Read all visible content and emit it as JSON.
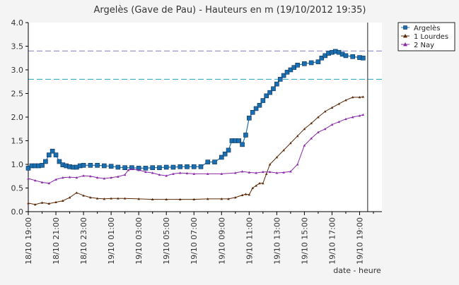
{
  "chart_data": {
    "type": "line",
    "title": "Argelès (Gave de Pau) - Hauteurs en m (19/10/2012 19:35)",
    "xlabel": "date - heure",
    "ylabel": "",
    "ylim": [
      0,
      4
    ],
    "y_ticks": [
      "0.0",
      "0.5",
      "1.0",
      "1.5",
      "2.0",
      "2.5",
      "3.0",
      "3.5",
      "4.0"
    ],
    "x_range": [
      "18/10 19:00",
      "19/10 20:00"
    ],
    "x_ticks": [
      "18/10 19:00",
      "18/10 21:00",
      "18/10 23:00",
      "19/10 01:00",
      "19/10 03:00",
      "19/10 05:00",
      "19/10 07:00",
      "19/10 09:00",
      "19/10 11:00",
      "19/10 13:00",
      "19/10 15:00",
      "19/10 17:00",
      "19/10 19:00"
    ],
    "current_time": "19/10 19:35",
    "grid": false,
    "legend_position": "top-right (outside plot)",
    "reference_lines": [
      {
        "y": 3.4,
        "color": "#8080c0"
      },
      {
        "y": 2.8,
        "color": "#20a0c0"
      }
    ],
    "series": [
      {
        "name": "Argelès",
        "color": "#1a6fb0",
        "marker": "square",
        "points": [
          [
            "18/10 19:00",
            0.92
          ],
          [
            "18/10 19:15",
            0.97
          ],
          [
            "18/10 19:30",
            0.97
          ],
          [
            "18/10 19:45",
            0.97
          ],
          [
            "18/10 20:00",
            0.98
          ],
          [
            "18/10 20:15",
            1.06
          ],
          [
            "18/10 20:30",
            1.2
          ],
          [
            "18/10 20:45",
            1.28
          ],
          [
            "18/10 21:00",
            1.2
          ],
          [
            "18/10 21:15",
            1.06
          ],
          [
            "18/10 21:30",
            0.99
          ],
          [
            "18/10 21:45",
            0.97
          ],
          [
            "18/10 22:00",
            0.95
          ],
          [
            "18/10 22:15",
            0.94
          ],
          [
            "18/10 22:30",
            0.94
          ],
          [
            "18/10 22:45",
            0.97
          ],
          [
            "18/10 23:00",
            0.98
          ],
          [
            "18/10 23:30",
            0.98
          ],
          [
            "19/10 00:00",
            0.98
          ],
          [
            "19/10 00:30",
            0.97
          ],
          [
            "19/10 01:00",
            0.96
          ],
          [
            "19/10 01:30",
            0.94
          ],
          [
            "19/10 02:00",
            0.93
          ],
          [
            "19/10 02:30",
            0.93
          ],
          [
            "19/10 03:00",
            0.92
          ],
          [
            "19/10 03:30",
            0.92
          ],
          [
            "19/10 04:00",
            0.93
          ],
          [
            "19/10 04:30",
            0.93
          ],
          [
            "19/10 05:00",
            0.94
          ],
          [
            "19/10 05:30",
            0.94
          ],
          [
            "19/10 06:00",
            0.95
          ],
          [
            "19/10 06:30",
            0.95
          ],
          [
            "19/10 07:00",
            0.95
          ],
          [
            "19/10 07:30",
            0.95
          ],
          [
            "19/10 08:00",
            1.05
          ],
          [
            "19/10 08:30",
            1.05
          ],
          [
            "19/10 09:00",
            1.15
          ],
          [
            "19/10 09:15",
            1.22
          ],
          [
            "19/10 09:30",
            1.3
          ],
          [
            "19/10 09:45",
            1.5
          ],
          [
            "19/10 10:00",
            1.5
          ],
          [
            "19/10 10:15",
            1.5
          ],
          [
            "19/10 10:30",
            1.42
          ],
          [
            "19/10 10:45",
            1.62
          ],
          [
            "19/10 11:00",
            1.98
          ],
          [
            "19/10 11:15",
            2.1
          ],
          [
            "19/10 11:30",
            2.18
          ],
          [
            "19/10 11:45",
            2.25
          ],
          [
            "19/10 12:00",
            2.35
          ],
          [
            "19/10 12:15",
            2.45
          ],
          [
            "19/10 12:30",
            2.52
          ],
          [
            "19/10 12:45",
            2.6
          ],
          [
            "19/10 13:00",
            2.7
          ],
          [
            "19/10 13:15",
            2.8
          ],
          [
            "19/10 13:30",
            2.88
          ],
          [
            "19/10 13:45",
            2.95
          ],
          [
            "19/10 14:00",
            3.0
          ],
          [
            "19/10 14:15",
            3.05
          ],
          [
            "19/10 14:30",
            3.1
          ],
          [
            "19/10 15:00",
            3.13
          ],
          [
            "19/10 15:30",
            3.15
          ],
          [
            "19/10 16:00",
            3.17
          ],
          [
            "19/10 16:15",
            3.25
          ],
          [
            "19/10 16:30",
            3.3
          ],
          [
            "19/10 16:45",
            3.35
          ],
          [
            "19/10 17:00",
            3.37
          ],
          [
            "19/10 17:15",
            3.39
          ],
          [
            "19/10 17:30",
            3.37
          ],
          [
            "19/10 17:45",
            3.33
          ],
          [
            "19/10 18:00",
            3.3
          ],
          [
            "19/10 18:30",
            3.28
          ],
          [
            "19/10 19:00",
            3.26
          ],
          [
            "19/10 19:15",
            3.25
          ]
        ]
      },
      {
        "name": "1 Lourdes",
        "color": "#5a2a08",
        "marker": "triangle",
        "points": [
          [
            "18/10 19:00",
            0.18
          ],
          [
            "18/10 19:30",
            0.15
          ],
          [
            "18/10 20:00",
            0.19
          ],
          [
            "18/10 20:30",
            0.17
          ],
          [
            "18/10 21:00",
            0.2
          ],
          [
            "18/10 21:30",
            0.23
          ],
          [
            "18/10 22:00",
            0.3
          ],
          [
            "18/10 22:30",
            0.4
          ],
          [
            "18/10 23:00",
            0.34
          ],
          [
            "18/10 23:30",
            0.3
          ],
          [
            "19/10 00:00",
            0.28
          ],
          [
            "19/10 00:30",
            0.27
          ],
          [
            "19/10 01:00",
            0.28
          ],
          [
            "19/10 01:30",
            0.28
          ],
          [
            "19/10 02:00",
            0.28
          ],
          [
            "19/10 03:00",
            0.27
          ],
          [
            "19/10 04:00",
            0.26
          ],
          [
            "19/10 05:00",
            0.26
          ],
          [
            "19/10 06:00",
            0.26
          ],
          [
            "19/10 07:00",
            0.26
          ],
          [
            "19/10 08:00",
            0.27
          ],
          [
            "19/10 09:00",
            0.27
          ],
          [
            "19/10 09:30",
            0.27
          ],
          [
            "19/10 10:00",
            0.3
          ],
          [
            "19/10 10:30",
            0.35
          ],
          [
            "19/10 10:45",
            0.37
          ],
          [
            "19/10 11:00",
            0.36
          ],
          [
            "19/10 11:15",
            0.5
          ],
          [
            "19/10 11:30",
            0.55
          ],
          [
            "19/10 11:45",
            0.6
          ],
          [
            "19/10 12:00",
            0.6
          ],
          [
            "19/10 12:15",
            0.8
          ],
          [
            "19/10 12:30",
            1.0
          ],
          [
            "19/10 13:00",
            1.15
          ],
          [
            "19/10 13:30",
            1.3
          ],
          [
            "19/10 14:00",
            1.45
          ],
          [
            "19/10 14:30",
            1.6
          ],
          [
            "19/10 15:00",
            1.75
          ],
          [
            "19/10 15:30",
            1.87
          ],
          [
            "19/10 16:00",
            2.0
          ],
          [
            "19/10 16:30",
            2.12
          ],
          [
            "19/10 17:00",
            2.2
          ],
          [
            "19/10 17:30",
            2.28
          ],
          [
            "19/10 18:00",
            2.36
          ],
          [
            "19/10 18:30",
            2.42
          ],
          [
            "19/10 19:00",
            2.42
          ],
          [
            "19/10 19:15",
            2.43
          ]
        ]
      },
      {
        "name": "2 Nay",
        "color": "#8a2aa8",
        "marker": "triangle",
        "points": [
          [
            "18/10 19:00",
            0.7
          ],
          [
            "18/10 19:30",
            0.66
          ],
          [
            "18/10 20:00",
            0.62
          ],
          [
            "18/10 20:30",
            0.6
          ],
          [
            "18/10 21:00",
            0.68
          ],
          [
            "18/10 21:30",
            0.72
          ],
          [
            "18/10 22:00",
            0.73
          ],
          [
            "18/10 22:30",
            0.72
          ],
          [
            "18/10 23:00",
            0.76
          ],
          [
            "18/10 23:30",
            0.75
          ],
          [
            "19/10 00:00",
            0.72
          ],
          [
            "19/10 00:30",
            0.7
          ],
          [
            "19/10 01:00",
            0.72
          ],
          [
            "19/10 01:30",
            0.74
          ],
          [
            "19/10 02:00",
            0.78
          ],
          [
            "19/10 02:15",
            0.88
          ],
          [
            "19/10 02:30",
            0.9
          ],
          [
            "19/10 03:00",
            0.88
          ],
          [
            "19/10 03:30",
            0.84
          ],
          [
            "19/10 04:00",
            0.82
          ],
          [
            "19/10 04:30",
            0.78
          ],
          [
            "19/10 05:00",
            0.76
          ],
          [
            "19/10 05:30",
            0.8
          ],
          [
            "19/10 06:00",
            0.82
          ],
          [
            "19/10 06:30",
            0.81
          ],
          [
            "19/10 07:00",
            0.8
          ],
          [
            "19/10 08:00",
            0.8
          ],
          [
            "19/10 09:00",
            0.8
          ],
          [
            "19/10 10:00",
            0.82
          ],
          [
            "19/10 10:30",
            0.85
          ],
          [
            "19/10 11:00",
            0.83
          ],
          [
            "19/10 11:30",
            0.82
          ],
          [
            "19/10 12:00",
            0.84
          ],
          [
            "19/10 12:30",
            0.84
          ],
          [
            "19/10 13:00",
            0.82
          ],
          [
            "19/10 13:30",
            0.83
          ],
          [
            "19/10 14:00",
            0.85
          ],
          [
            "19/10 14:30",
            1.0
          ],
          [
            "19/10 15:00",
            1.4
          ],
          [
            "19/10 15:30",
            1.55
          ],
          [
            "19/10 16:00",
            1.68
          ],
          [
            "19/10 16:30",
            1.75
          ],
          [
            "19/10 17:00",
            1.84
          ],
          [
            "19/10 17:30",
            1.9
          ],
          [
            "19/10 18:00",
            1.96
          ],
          [
            "19/10 18:30",
            2.0
          ],
          [
            "19/10 19:00",
            2.03
          ],
          [
            "19/10 19:15",
            2.05
          ]
        ]
      }
    ]
  }
}
